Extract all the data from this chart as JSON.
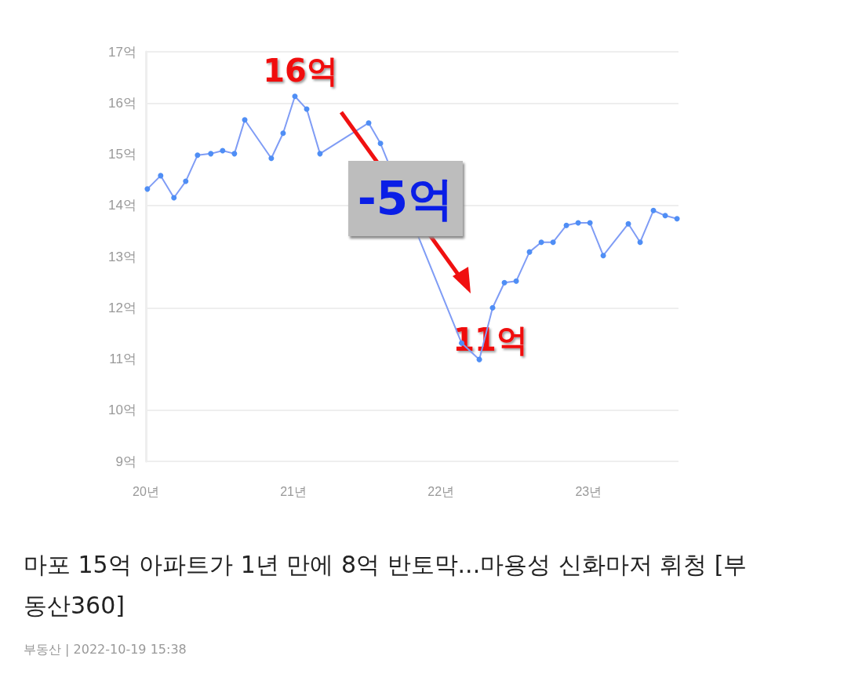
{
  "chart_data": {
    "type": "line",
    "title": "마포 15억 아파트가 1년 만에 8억 반토막...마용성 신화마저 휘청 [부동산360]",
    "x": [
      20.01,
      20.1,
      20.19,
      20.27,
      20.35,
      20.44,
      20.52,
      20.6,
      20.67,
      20.85,
      20.93,
      21.01,
      21.09,
      21.18,
      21.51,
      21.59,
      22.14,
      22.26,
      22.35,
      22.43,
      22.51,
      22.6,
      22.68,
      22.76,
      22.85,
      22.93,
      23.01,
      23.1,
      23.27,
      23.35,
      23.44,
      23.52,
      23.6
    ],
    "series": [
      {
        "color": "#7f9cf5",
        "values": [
          14.32,
          14.58,
          14.15,
          14.47,
          14.98,
          15.01,
          15.07,
          15.01,
          15.67,
          14.92,
          15.41,
          16.13,
          15.88,
          15.01,
          15.61,
          15.21,
          11.31,
          10.99,
          12.0,
          12.49,
          12.52,
          13.09,
          13.28,
          13.28,
          13.61,
          13.66,
          13.66,
          13.02,
          13.64,
          13.28,
          13.9,
          13.8,
          13.74
        ]
      }
    ],
    "xlim": [
      20,
      23.61
    ],
    "xticks": [
      {
        "value": 20,
        "label": "20년"
      },
      {
        "value": 21,
        "label": "21년"
      },
      {
        "value": 22,
        "label": "22년"
      },
      {
        "value": 23,
        "label": "23년"
      }
    ],
    "ylim": [
      9,
      17
    ],
    "yticks": [
      {
        "value": 9,
        "label": "9억"
      },
      {
        "value": 10,
        "label": "10억"
      },
      {
        "value": 11,
        "label": "11억"
      },
      {
        "value": 12,
        "label": "12억"
      },
      {
        "value": 13,
        "label": "13억"
      },
      {
        "value": 14,
        "label": "14억"
      },
      {
        "value": 15,
        "label": "15억"
      },
      {
        "value": 16,
        "label": "16억"
      },
      {
        "value": 17,
        "label": "17억"
      }
    ],
    "grid": "y",
    "marker": "circle",
    "line_style": "solid",
    "annotations": [
      {
        "text": "16억",
        "x": 21.01,
        "y": 16.13
      },
      {
        "text": "11억",
        "x": 22.26,
        "y": 10.99
      },
      "-5억",
      "부동산 | 2022-10-19 15:38"
    ]
  }
}
